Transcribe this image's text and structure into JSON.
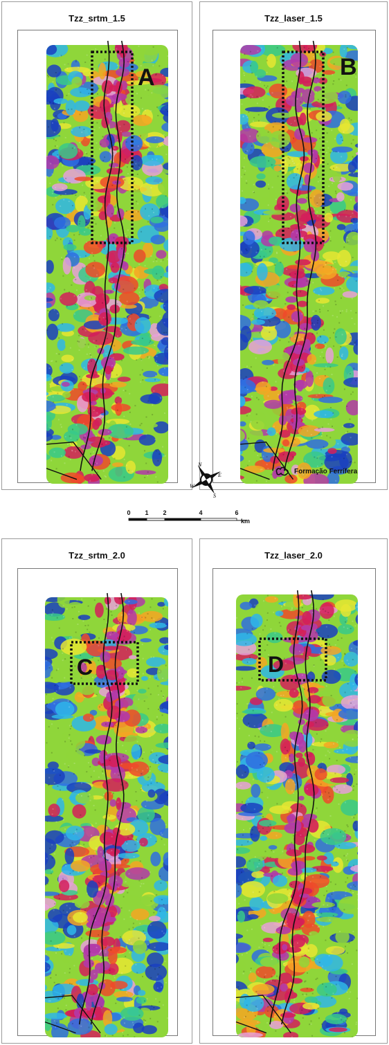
{
  "panels": [
    {
      "title": "Tzz_srtm_1.5",
      "box_label": "A",
      "variant": 0
    },
    {
      "title": "Tzz_laser_1.5",
      "box_label": "B",
      "variant": 1
    },
    {
      "title": "Tzz_srtm_2.0",
      "box_label": "C",
      "variant": 2
    },
    {
      "title": "Tzz_laser_2.0",
      "box_label": "D",
      "variant": 3
    }
  ],
  "legend": {
    "label": "Formação Ferrífera"
  },
  "compass": {
    "n": "N",
    "e": "E",
    "s": "S",
    "w": "W"
  },
  "scale": {
    "ticks": [
      "0",
      "1",
      "2",
      "4",
      "6"
    ],
    "unit": "km"
  },
  "colors": {
    "ramp": [
      "#1a3fbf",
      "#2f6fe0",
      "#2fb6e8",
      "#38c98a",
      "#8fd63a",
      "#e6e632",
      "#f5a623",
      "#ef4a2a",
      "#d41f5a",
      "#b23aa8",
      "#e6a0d8"
    ],
    "outline": "#111111",
    "box": "#111111"
  }
}
